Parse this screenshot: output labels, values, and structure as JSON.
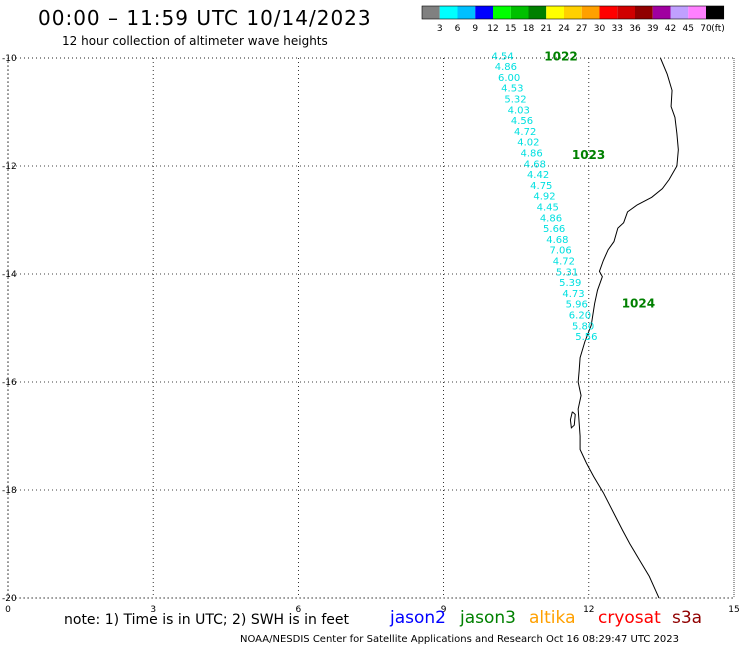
{
  "header": {
    "title": "00:00 – 11:59 UTC 10/14/2023",
    "subtitle": "12 hour collection of altimeter wave heights"
  },
  "color_scale": {
    "labels": [
      "3",
      "6",
      "9",
      "12",
      "15",
      "18",
      "21",
      "24",
      "27",
      "30",
      "33",
      "36",
      "39",
      "42",
      "45",
      "70"
    ],
    "unit": "(ft)",
    "colors": [
      "#808080",
      "#00ffff",
      "#00c0ff",
      "#0000ff",
      "#00ff00",
      "#00c000",
      "#008000",
      "#ffff00",
      "#ffd000",
      "#ffa000",
      "#ff0000",
      "#d00000",
      "#900000",
      "#a000a0",
      "#c0a0ff",
      "#ff80ff",
      "#000000"
    ]
  },
  "map": {
    "lon_range": [
      0,
      15
    ],
    "lat_range": [
      -20,
      -10
    ],
    "x_ticks": [
      "0",
      "3",
      "6",
      "9",
      "12",
      "15"
    ],
    "y_ticks": [
      "-10",
      "-12",
      "-14",
      "-16",
      "-18",
      "-20"
    ],
    "grid": "dotted",
    "coastline_color": "#000000"
  },
  "pass": {
    "satellite": "jason3",
    "color": "#00e0e0",
    "values": [
      "4.54",
      "4.86",
      "6.00",
      "4.53",
      "5.32",
      "4.03",
      "4.56",
      "4.72",
      "4.02",
      "4.86",
      "4.68",
      "4.42",
      "4.75",
      "4.92",
      "4.45",
      "4.86",
      "5.66",
      "4.68",
      "7.06",
      "4.72",
      "5.31",
      "5.39",
      "4.73",
      "5.96",
      "6.20",
      "5.80",
      "5.56"
    ]
  },
  "time_labels": {
    "color": "#008000",
    "items": [
      "1022",
      "1023",
      "1024"
    ]
  },
  "footer": {
    "note": "note: 1) Time is in UTC; 2) SWH is in feet",
    "satellites": [
      {
        "name": "jason2",
        "color": "#0000ff"
      },
      {
        "name": "jason3",
        "color": "#008000"
      },
      {
        "name": "altika",
        "color": "#ffa000"
      },
      {
        "name": "cryosat",
        "color": "#ff0000"
      },
      {
        "name": "s3a",
        "color": "#900000"
      }
    ],
    "credit": "NOAA/NESDIS Center for Satellite Applications and Research    Oct 16 08:29:47 UTC 2023"
  }
}
